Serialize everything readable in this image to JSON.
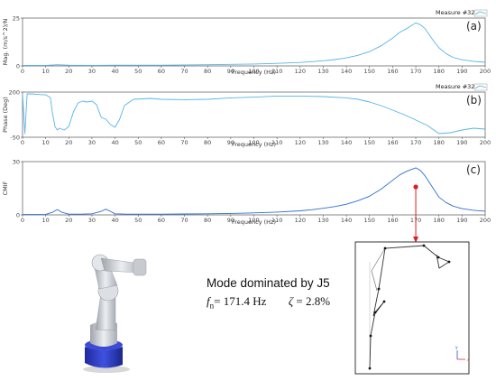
{
  "chart_data": [
    {
      "type": "line",
      "tag": "(a)",
      "ylabel": "Mag. (m/s^2)/N",
      "xlabel": "Frequency (Hz)",
      "xlim": [
        0,
        200
      ],
      "ylim": [
        0,
        25
      ],
      "yticks": [
        0,
        25
      ],
      "xticks": [
        0,
        10,
        20,
        30,
        40,
        50,
        60,
        70,
        80,
        90,
        100,
        110,
        120,
        130,
        140,
        150,
        160,
        170,
        180,
        190,
        200
      ],
      "legend": "Measure #32",
      "color": "#56b4e9",
      "series": [
        {
          "name": "Measure #32",
          "x": [
            0,
            5,
            10,
            15,
            20,
            30,
            40,
            50,
            60,
            70,
            80,
            90,
            100,
            110,
            120,
            125,
            130,
            135,
            140,
            145,
            150,
            155,
            160,
            163,
            166,
            168,
            170,
            172,
            174,
            176,
            178,
            180,
            183,
            186,
            190,
            195,
            200
          ],
          "y": [
            0.3,
            0.3,
            0.3,
            0.6,
            0.4,
            0.3,
            0.4,
            0.4,
            0.4,
            0.5,
            0.6,
            0.8,
            1.0,
            1.3,
            1.8,
            2.2,
            2.7,
            3.3,
            4.2,
            5.5,
            7.5,
            10.5,
            14.5,
            17.5,
            19.5,
            21.0,
            22.5,
            21.5,
            19.5,
            16.0,
            12.5,
            9.5,
            6.5,
            4.5,
            3.2,
            2.4,
            1.9
          ]
        }
      ]
    },
    {
      "type": "line",
      "tag": "(b)",
      "ylabel": "Phase (Deg)",
      "xlabel": "Frequency (Hz)",
      "xlim": [
        0,
        200
      ],
      "ylim": [
        -50,
        200
      ],
      "yticks": [
        -50,
        200
      ],
      "xticks": [
        0,
        10,
        20,
        30,
        40,
        50,
        60,
        70,
        80,
        90,
        100,
        110,
        120,
        130,
        140,
        150,
        160,
        170,
        180,
        190,
        200
      ],
      "legend": "Measure #32",
      "color": "#56b4e9",
      "series": [
        {
          "name": "Measure #32",
          "x": [
            0,
            1,
            2,
            3,
            4,
            6,
            8,
            10,
            12,
            13,
            14,
            15,
            16,
            18,
            20,
            22,
            24,
            26,
            28,
            30,
            32,
            34,
            36,
            38,
            40,
            42,
            44,
            48,
            55,
            60,
            70,
            80,
            90,
            100,
            110,
            120,
            130,
            140,
            145,
            150,
            155,
            160,
            165,
            170,
            175,
            180,
            185,
            190,
            195,
            200
          ],
          "y": [
            190,
            -30,
            190,
            190,
            190,
            188,
            186,
            185,
            170,
            80,
            10,
            -10,
            0,
            -10,
            10,
            90,
            140,
            150,
            145,
            150,
            130,
            60,
            50,
            20,
            5,
            50,
            125,
            160,
            165,
            160,
            158,
            160,
            168,
            172,
            178,
            178,
            175,
            168,
            160,
            145,
            125,
            100,
            75,
            45,
            15,
            -30,
            -25,
            -10,
            0,
            -5
          ]
        }
      ]
    },
    {
      "type": "line",
      "tag": "(c)",
      "ylabel": "CMIF",
      "xlabel": "Frequency (Hz)",
      "xlim": [
        0,
        200
      ],
      "ylim": [
        0,
        30
      ],
      "yticks": [
        0,
        30
      ],
      "xticks": [
        0,
        10,
        20,
        30,
        40,
        50,
        60,
        70,
        80,
        90,
        100,
        110,
        120,
        130,
        140,
        150,
        160,
        170,
        180,
        190,
        200
      ],
      "color": "#2d6fd1",
      "series": [
        {
          "name": "CMIF",
          "x": [
            0,
            5,
            10,
            13,
            15,
            17,
            20,
            25,
            30,
            34,
            36,
            38,
            40,
            45,
            50,
            60,
            70,
            80,
            90,
            100,
            110,
            120,
            125,
            130,
            135,
            140,
            145,
            150,
            155,
            160,
            163,
            166,
            168,
            170,
            172,
            174,
            176,
            178,
            180,
            183,
            186,
            190,
            195,
            200
          ],
          "y": [
            0.2,
            0.2,
            0.3,
            1.5,
            3.0,
            1.5,
            0.4,
            0.4,
            0.6,
            2.0,
            3.2,
            2.0,
            0.6,
            0.4,
            0.4,
            0.4,
            0.5,
            0.6,
            0.8,
            1.1,
            1.6,
            2.3,
            2.9,
            3.7,
            4.7,
            6.0,
            8.0,
            10.5,
            14.5,
            19.5,
            22.5,
            24.5,
            25.5,
            26.5,
            25.0,
            22.0,
            18.0,
            14.0,
            10.0,
            7.0,
            5.0,
            3.5,
            2.6,
            2.1
          ]
        }
      ]
    }
  ],
  "annotation": {
    "mode_line": "Mode dominated  by J5",
    "fn_symbol": "f",
    "fn_sub": "n",
    "fn_value": "= 171.4 Hz",
    "zeta_symbol": "ζ",
    "zeta_value": "= 2.8%",
    "marker_frequency": 170
  },
  "mode_shape": {
    "axis_y_label": "y",
    "axis_x_label": "x"
  },
  "colors": {
    "magnitude_line": "#56b4e9",
    "phase_line": "#56b4e9",
    "cmif_line": "#2d6fd1",
    "arrow": "#e02020",
    "robot_body": "#c9ccd1",
    "robot_base": "#2f3fc0"
  },
  "icons": {
    "robot": "robot-arm-illustration",
    "legend": "legend-line-swatch"
  }
}
